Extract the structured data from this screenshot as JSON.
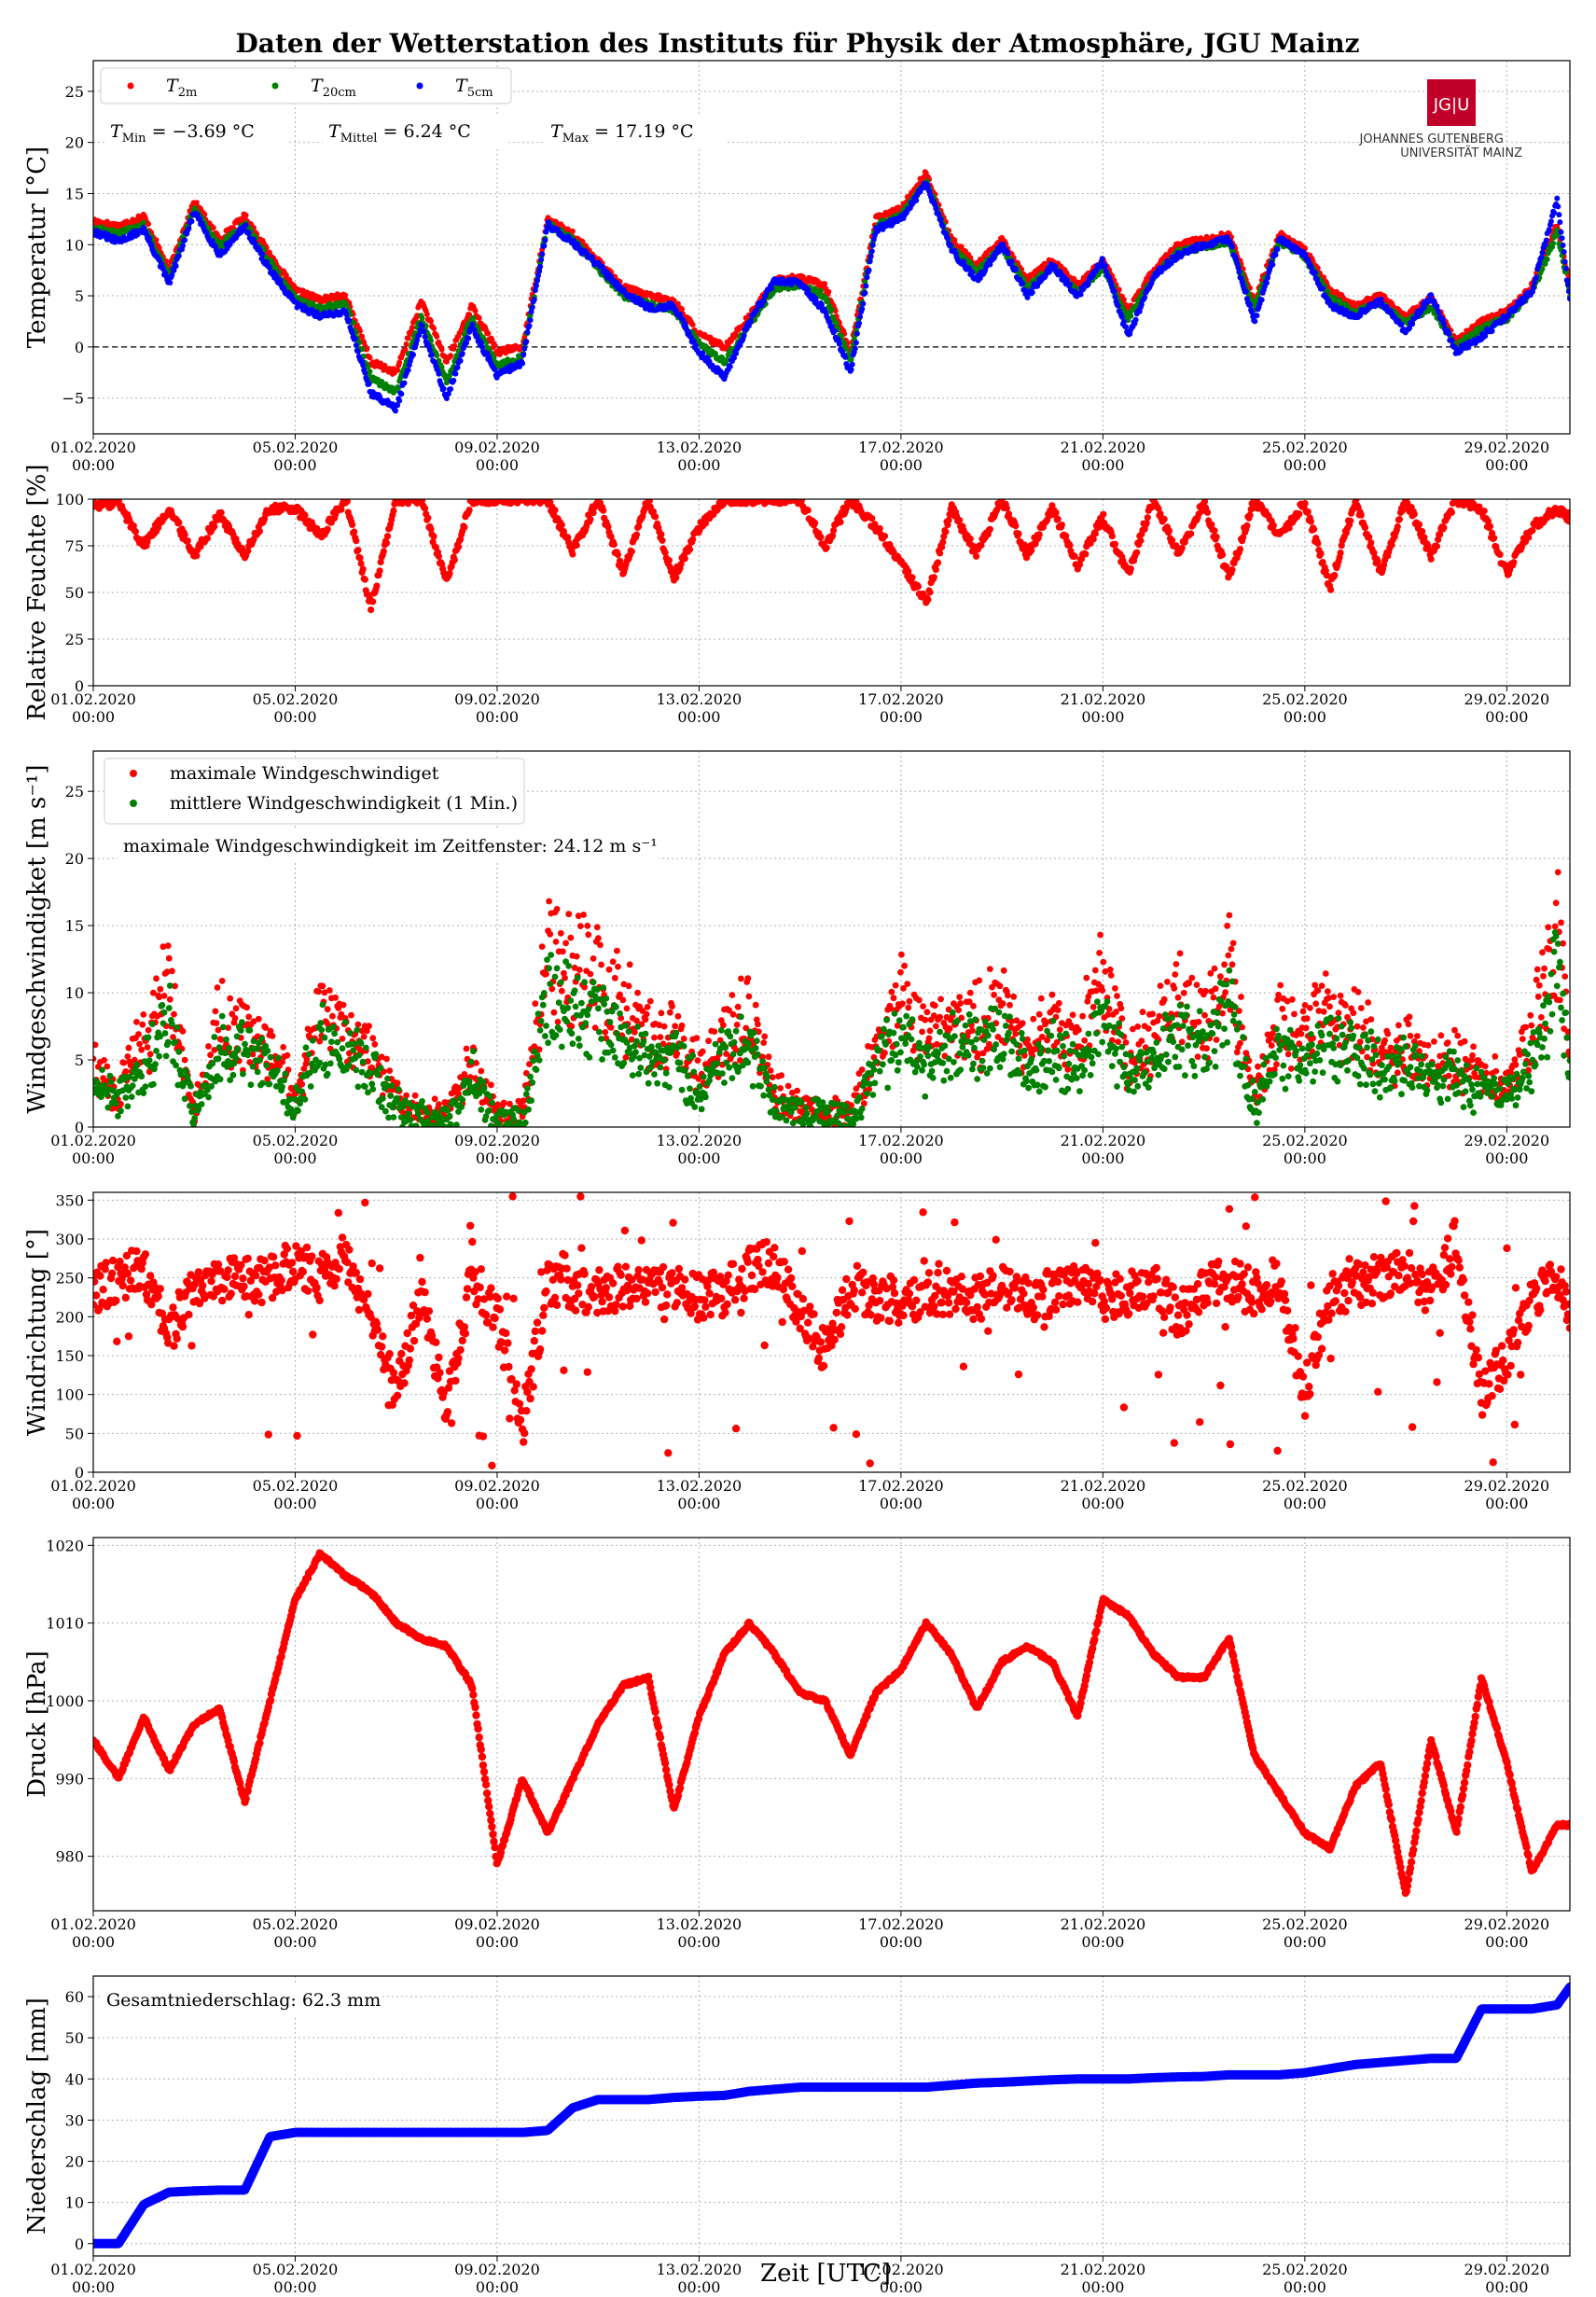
{
  "title": "Daten der Wetterstation des Instituts für Physik der Atmosphäre, JGU Mainz",
  "logo": {
    "mark": "JG|U",
    "line1": "JOHANNES GUTENBERG",
    "line2": "UNIVERSITÄT MAINZ"
  },
  "x_ticks": [
    "01.02.2020\n00:00",
    "05.02.2020\n00:00",
    "09.02.2020\n00:00",
    "13.02.2020\n00:00",
    "17.02.2020\n00:00",
    "21.02.2020\n00:00",
    "25.02.2020\n00:00",
    "29.02.2020\n00:00"
  ],
  "x_label": "Zeit [UTC]",
  "colors": {
    "red": "#ff0000",
    "green": "#008000",
    "blue": "#0000ff",
    "axis": "#000000",
    "grid": "#b0b0b0"
  },
  "chart_data": [
    {
      "type": "scatter",
      "ylabel": "Temperatur [°C]",
      "ylim": [
        -8.5,
        28
      ],
      "yticks": [
        -5,
        0,
        5,
        10,
        15,
        20,
        25
      ],
      "xlim": [
        "2020-02-01T00:00",
        "2020-03-01T06:00"
      ],
      "zero_line": true,
      "legend": [
        "T2m",
        "T20cm",
        "T5cm"
      ],
      "legend_display": [
        {
          "base": "T",
          "sub": "2m",
          "color": "#ff0000"
        },
        {
          "base": "T",
          "sub": "20cm",
          "color": "#008000"
        },
        {
          "base": "T",
          "sub": "5cm",
          "color": "#0000ff"
        }
      ],
      "annotations": [
        {
          "base": "T",
          "sub": "Min",
          "value": " = −3.69 °C"
        },
        {
          "base": "T",
          "sub": "Mittel",
          "value": " = 6.24 °C"
        },
        {
          "base": "T",
          "sub": "Max",
          "value": " = 17.19 °C"
        }
      ],
      "x": [
        "2020-02-01T00:00",
        "2020-02-01T12:00",
        "2020-02-02T00:00",
        "2020-02-02T12:00",
        "2020-02-03T00:00",
        "2020-02-03T12:00",
        "2020-02-04T00:00",
        "2020-02-04T12:00",
        "2020-02-05T00:00",
        "2020-02-05T12:00",
        "2020-02-06T00:00",
        "2020-02-06T12:00",
        "2020-02-07T00:00",
        "2020-02-07T12:00",
        "2020-02-08T00:00",
        "2020-02-08T12:00",
        "2020-02-09T00:00",
        "2020-02-09T12:00",
        "2020-02-10T00:00",
        "2020-02-10T12:00",
        "2020-02-11T00:00",
        "2020-02-11T12:00",
        "2020-02-12T00:00",
        "2020-02-12T12:00",
        "2020-02-13T00:00",
        "2020-02-13T12:00",
        "2020-02-14T00:00",
        "2020-02-14T12:00",
        "2020-02-15T00:00",
        "2020-02-15T12:00",
        "2020-02-16T00:00",
        "2020-02-16T12:00",
        "2020-02-17T00:00",
        "2020-02-17T12:00",
        "2020-02-18T00:00",
        "2020-02-18T12:00",
        "2020-02-19T00:00",
        "2020-02-19T12:00",
        "2020-02-20T00:00",
        "2020-02-20T12:00",
        "2020-02-21T00:00",
        "2020-02-21T12:00",
        "2020-02-22T00:00",
        "2020-02-22T12:00",
        "2020-02-23T00:00",
        "2020-02-23T12:00",
        "2020-02-24T00:00",
        "2020-02-24T12:00",
        "2020-02-25T00:00",
        "2020-02-25T12:00",
        "2020-02-26T00:00",
        "2020-02-26T12:00",
        "2020-02-27T00:00",
        "2020-02-27T12:00",
        "2020-02-28T00:00",
        "2020-02-28T12:00",
        "2020-02-29T00:00",
        "2020-02-29T12:00",
        "2020-03-01T00:00",
        "2020-03-01T06:00"
      ],
      "series": [
        {
          "name": "T2m",
          "values": [
            12.3,
            11.8,
            12.8,
            7.5,
            14.2,
            10.5,
            12.8,
            9.0,
            5.5,
            4.6,
            5.0,
            -1.5,
            -2.5,
            4.5,
            -1.5,
            4.0,
            -0.5,
            0.0,
            12.5,
            11.0,
            8.5,
            5.8,
            5.0,
            4.5,
            1.2,
            0.0,
            3.0,
            6.5,
            6.8,
            6.0,
            -0.5,
            12.5,
            13.5,
            17.0,
            10.5,
            8.0,
            10.5,
            6.5,
            8.5,
            6.0,
            8.5,
            3.5,
            7.5,
            10.0,
            10.5,
            11.0,
            4.5,
            11.0,
            9.5,
            5.5,
            4.0,
            5.0,
            3.0,
            4.8,
            0.5,
            2.5,
            3.5,
            6.0,
            12.0,
            6.0
          ]
        },
        {
          "name": "T20cm",
          "values": [
            11.7,
            11.0,
            12.0,
            6.8,
            13.5,
            9.8,
            12.0,
            8.3,
            4.7,
            3.8,
            4.2,
            -3.0,
            -4.5,
            3.0,
            -3.5,
            3.0,
            -1.8,
            -1.0,
            12.0,
            10.5,
            7.7,
            5.0,
            4.2,
            3.6,
            0.3,
            -1.5,
            2.2,
            5.8,
            6.0,
            5.0,
            -1.5,
            11.8,
            12.8,
            16.2,
            9.8,
            7.3,
            9.8,
            5.8,
            7.8,
            5.3,
            7.8,
            2.8,
            6.8,
            9.3,
            9.8,
            10.3,
            3.8,
            10.3,
            8.8,
            4.8,
            3.3,
            4.3,
            2.3,
            4.0,
            0.0,
            1.8,
            2.8,
            5.3,
            11.2,
            5.2
          ]
        },
        {
          "name": "T5cm",
          "values": [
            11.3,
            10.3,
            11.5,
            6.2,
            13.2,
            9.0,
            11.8,
            7.5,
            4.2,
            3.0,
            3.5,
            -4.5,
            -6.0,
            2.0,
            -5.0,
            2.0,
            -2.8,
            -1.5,
            12.0,
            10.2,
            8.0,
            5.5,
            3.8,
            4.0,
            -0.5,
            -3.0,
            2.5,
            6.5,
            6.2,
            3.5,
            -2.5,
            11.5,
            12.5,
            16.0,
            9.5,
            6.5,
            10.0,
            5.0,
            8.0,
            5.0,
            8.5,
            1.0,
            7.0,
            9.0,
            10.0,
            10.5,
            2.5,
            10.5,
            9.0,
            4.0,
            3.0,
            4.5,
            1.5,
            5.0,
            -0.5,
            1.0,
            3.0,
            5.5,
            14.5,
            4.5
          ]
        }
      ]
    },
    {
      "type": "scatter",
      "ylabel": "Relative Feuchte [%]",
      "ylim": [
        0,
        100
      ],
      "yticks": [
        0,
        25,
        50,
        75,
        100
      ],
      "series": [
        {
          "name": "",
          "values": [
            97,
            98,
            75,
            95,
            70,
            92,
            70,
            95,
            95,
            80,
            100,
            42,
            100,
            100,
            55,
            100,
            100,
            100,
            100,
            72,
            100,
            60,
            100,
            58,
            85,
            100,
            100,
            100,
            100,
            75,
            100,
            85,
            65,
            45,
            95,
            70,
            100,
            70,
            95,
            65,
            90,
            60,
            100,
            70,
            98,
            57,
            100,
            80,
            98,
            52,
            100,
            60,
            100,
            70,
            100,
            95,
            60,
            85,
            95,
            90
          ]
        }
      ]
    },
    {
      "type": "scatter",
      "ylabel": "Windgeschwindigket [m s⁻¹]",
      "ylim": [
        0,
        28
      ],
      "yticks": [
        0,
        5,
        10,
        15,
        20,
        25
      ],
      "legend": [
        "maximale Windgeschwindiget",
        "mittlere Windgeschwindigkeit (1 Min.)"
      ],
      "annotation": "maximale Windgeschwindigkeit im Zeitfenster: 24.12 m s⁻¹",
      "series": [
        {
          "name": "maximale Windgeschwindiget",
          "values": [
            6.0,
            3.5,
            8.5,
            14.0,
            1.5,
            10.5,
            9.5,
            8.0,
            3.0,
            12.0,
            9.5,
            7.0,
            3.0,
            1.5,
            1.0,
            6.5,
            1.0,
            1.0,
            17.0,
            15.5,
            15.0,
            12.0,
            9.0,
            10.0,
            5.5,
            9.5,
            11.5,
            3.5,
            1.5,
            2.0,
            1.0,
            8.0,
            12.5,
            9.0,
            11.0,
            10.0,
            12.0,
            7.5,
            10.0,
            8.0,
            14.5,
            7.0,
            9.0,
            12.5,
            10.0,
            16.5,
            3.0,
            10.0,
            9.0,
            11.5,
            10.0,
            7.5,
            8.0,
            6.0,
            7.0,
            5.0,
            4.0,
            8.5,
            19.5,
            7.0
          ]
        },
        {
          "name": "mittlere Windgeschwindigkeit (1 Min.)",
          "values": [
            4.0,
            2.5,
            6.0,
            11.0,
            1.0,
            8.0,
            7.0,
            6.0,
            2.0,
            9.5,
            7.5,
            5.5,
            2.0,
            1.0,
            0.5,
            5.0,
            0.5,
            0.5,
            13.0,
            12.0,
            11.0,
            8.5,
            6.5,
            7.0,
            3.5,
            7.0,
            8.5,
            2.5,
            1.0,
            1.5,
            0.5,
            6.0,
            9.0,
            6.5,
            8.0,
            7.5,
            9.0,
            5.5,
            7.5,
            6.0,
            10.5,
            5.0,
            6.5,
            9.0,
            7.5,
            12.0,
            2.0,
            7.5,
            6.5,
            8.5,
            7.5,
            5.5,
            6.0,
            4.5,
            5.0,
            3.5,
            3.0,
            6.5,
            14.5,
            5.0
          ]
        }
      ]
    },
    {
      "type": "scatter",
      "ylabel": "Windrichtung [°]",
      "ylim": [
        0,
        360
      ],
      "yticks": [
        0,
        50,
        100,
        150,
        200,
        250,
        300,
        350
      ],
      "series": [
        {
          "name": "",
          "values": [
            230,
            250,
            260,
            180,
            240,
            250,
            245,
            250,
            270,
            250,
            280,
            200,
            100,
            230,
            80,
            250,
            200,
            60,
            240,
            235,
            230,
            240,
            235,
            240,
            225,
            230,
            260,
            270,
            210,
            150,
            240,
            225,
            220,
            230,
            230,
            220,
            240,
            225,
            230,
            240,
            225,
            225,
            250,
            200,
            240,
            245,
            230,
            250,
            100,
            230,
            240,
            250,
            260,
            230,
            300,
            100,
            150,
            220,
            250,
            200
          ]
        }
      ]
    },
    {
      "type": "scatter",
      "ylabel": "Druck [hPa]",
      "ylim": [
        973,
        1021
      ],
      "yticks": [
        980,
        990,
        1000,
        1010,
        1020
      ],
      "series": [
        {
          "name": "",
          "values": [
            995,
            990,
            998,
            991,
            997,
            999,
            987,
            1000,
            1013,
            1019,
            1016,
            1014,
            1010,
            1008,
            1007,
            1002,
            979,
            990,
            983,
            990,
            997,
            1002,
            1003,
            986,
            998,
            1006,
            1010,
            1006,
            1001,
            1000,
            993,
            1001,
            1004,
            1010,
            1006,
            999,
            1005,
            1007,
            1005,
            998,
            1013,
            1011,
            1006,
            1003,
            1003,
            1008,
            993,
            988,
            983,
            981,
            989,
            992,
            975,
            995,
            983,
            1003,
            992,
            978,
            984,
            984
          ]
        }
      ]
    },
    {
      "type": "line",
      "ylabel": "Niederschlag [mm]",
      "ylim": [
        -3,
        65
      ],
      "yticks": [
        0,
        10,
        20,
        30,
        40,
        50,
        60
      ],
      "annotation": "Gesamtniederschlag: 62.3 mm",
      "series": [
        {
          "name": "",
          "values": [
            0,
            0,
            9.5,
            12.5,
            12.8,
            13,
            13,
            26,
            27,
            27,
            27,
            27,
            27,
            27,
            27,
            27,
            27,
            27,
            27.5,
            33,
            35,
            35,
            35,
            35.5,
            35.8,
            36,
            37,
            37.5,
            38,
            38,
            38,
            38,
            38,
            38,
            38.5,
            39,
            39.2,
            39.5,
            39.8,
            40,
            40,
            40,
            40.3,
            40.5,
            40.6,
            41,
            41,
            41,
            41.5,
            42.5,
            43.5,
            44,
            44.5,
            45,
            45,
            57,
            57,
            57,
            58,
            62.3
          ]
        }
      ]
    }
  ]
}
